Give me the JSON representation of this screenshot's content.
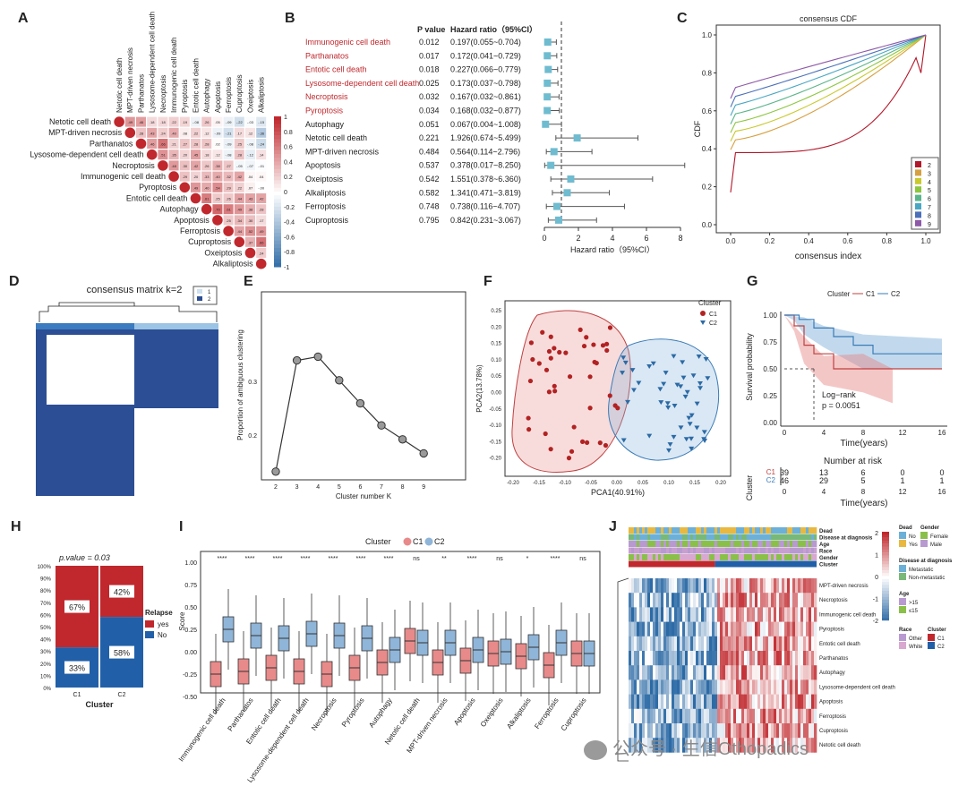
{
  "panel_labels": [
    "A",
    "B",
    "C",
    "D",
    "E",
    "F",
    "G",
    "H",
    "I",
    "J"
  ],
  "watermark": "公众号 · 生信Othopadics",
  "panel_A": {
    "labels": [
      "Netotic cell death",
      "MPT-driven necrosis",
      "Parthanatos",
      "Lysosome-dependent cell death",
      "Necroptosis",
      "Immunogenic cell death",
      "Pyroptosis",
      "Entotic cell death",
      "Autophagy",
      "Apoptosis",
      "Ferroptosis",
      "Cuproptosis",
      "Oxeiptosis",
      "Alkaliptosis"
    ],
    "scale": [
      "1",
      "0.8",
      "0.6",
      "0.4",
      "0.2",
      "0",
      "-0.2",
      "-0.4",
      "-0.6",
      "-0.8",
      "-1"
    ]
  },
  "panel_B": {
    "header_p": "P value",
    "header_hr": "Hazard ratio（95%CI）",
    "xlabel": "Hazard ratio（95%CI）",
    "ticks": [
      "0",
      "2",
      "4",
      "6",
      "8"
    ],
    "rows": [
      {
        "name": "Immunogenic cell death",
        "p": "0.012",
        "hr_text": "0.197(0.055~0.704)",
        "hr": 0.197,
        "lo": 0.055,
        "hi": 0.704,
        "sig": true
      },
      {
        "name": "Parthanatos",
        "p": "0.017",
        "hr_text": "0.172(0.041~0.729)",
        "hr": 0.172,
        "lo": 0.041,
        "hi": 0.729,
        "sig": true
      },
      {
        "name": "Entotic cell death",
        "p": "0.018",
        "hr_text": "0.227(0.066~0.779)",
        "hr": 0.227,
        "lo": 0.066,
        "hi": 0.779,
        "sig": true
      },
      {
        "name": "Lysosome-dependent cell death",
        "p": "0.025",
        "hr_text": "0.173(0.037~0.798)",
        "hr": 0.173,
        "lo": 0.037,
        "hi": 0.798,
        "sig": true
      },
      {
        "name": "Necroptosis",
        "p": "0.032",
        "hr_text": "0.167(0.032~0.861)",
        "hr": 0.167,
        "lo": 0.032,
        "hi": 0.861,
        "sig": true
      },
      {
        "name": "Pyroptosis",
        "p": "0.034",
        "hr_text": "0.168(0.032~0.877)",
        "hr": 0.168,
        "lo": 0.032,
        "hi": 0.877,
        "sig": true
      },
      {
        "name": "Autophagy",
        "p": "0.051",
        "hr_text": "0.067(0.004~1.008)",
        "hr": 0.067,
        "lo": 0.004,
        "hi": 1.008,
        "sig": false
      },
      {
        "name": "Netotic cell death",
        "p": "0.221",
        "hr_text": "1.926(0.674~5.499)",
        "hr": 1.926,
        "lo": 0.674,
        "hi": 5.499,
        "sig": false
      },
      {
        "name": "MPT-driven necrosis",
        "p": "0.484",
        "hr_text": "0.564(0.114~2.796)",
        "hr": 0.564,
        "lo": 0.114,
        "hi": 2.796,
        "sig": false
      },
      {
        "name": "Apoptosis",
        "p": "0.537",
        "hr_text": "0.378(0.017~8.250)",
        "hr": 0.378,
        "lo": 0.017,
        "hi": 8.25,
        "sig": false
      },
      {
        "name": "Oxeiptosis",
        "p": "0.542",
        "hr_text": "1.551(0.378~6.360)",
        "hr": 1.551,
        "lo": 0.378,
        "hi": 6.36,
        "sig": false
      },
      {
        "name": "Alkaliptosis",
        "p": "0.582",
        "hr_text": "1.341(0.471~3.819)",
        "hr": 1.341,
        "lo": 0.471,
        "hi": 3.819,
        "sig": false
      },
      {
        "name": "Ferroptosis",
        "p": "0.748",
        "hr_text": "0.738(0.116~4.707)",
        "hr": 0.738,
        "lo": 0.116,
        "hi": 4.707,
        "sig": false
      },
      {
        "name": "Cuproptosis",
        "p": "0.795",
        "hr_text": "0.842(0.231~3.067)",
        "hr": 0.842,
        "lo": 0.231,
        "hi": 3.067,
        "sig": false
      }
    ]
  },
  "panel_C": {
    "title": "consensus CDF",
    "xlabel": "consensus index",
    "ylabel": "CDF",
    "xticks": [
      "0.0",
      "0.2",
      "0.4",
      "0.6",
      "0.8",
      "1.0"
    ],
    "yticks": [
      "0.0",
      "0.2",
      "0.4",
      "0.6",
      "0.8",
      "1.0"
    ],
    "legend": [
      "2",
      "3",
      "4",
      "5",
      "6",
      "7",
      "8",
      "9"
    ]
  },
  "panel_D": {
    "title": "consensus matrix k=2",
    "legend": [
      "1",
      "2"
    ]
  },
  "panel_E": {
    "xlabel": "Cluster number K",
    "ylabel": "Proportion of ambiguous clustering",
    "xticks": [
      "2",
      "3",
      "4",
      "5",
      "6",
      "7",
      "8",
      "9"
    ],
    "yticks": [
      "0.2",
      "0.3"
    ]
  },
  "panel_F": {
    "xlabel": "PCA1(40.91%)",
    "ylabel": "PCA2(13.78%)",
    "legend_title": "Cluster",
    "legend": [
      "C1",
      "C2"
    ],
    "xticks": [
      "-0.20",
      "-0.15",
      "-0.10",
      "-0.05",
      "0.00",
      "0.05",
      "0.10",
      "0.15",
      "0.20"
    ],
    "yticks": [
      "0.25",
      "0.20",
      "0.15",
      "0.10",
      "0.05",
      "0.00",
      "-0.05",
      "-0.10",
      "-0.15",
      "-0.20"
    ]
  },
  "panel_G": {
    "legend_title": "Cluster",
    "legend": [
      "C1",
      "C2"
    ],
    "ylabel": "Survival probability",
    "xlabel": "Time(years)",
    "yticks": [
      "1.00",
      "0.75",
      "0.50",
      "0.25",
      "0.00"
    ],
    "xticks": [
      "0",
      "4",
      "8",
      "12",
      "16"
    ],
    "logrank": "Log−rank",
    "pval": "p = 0.0051",
    "risk_title": "Number at risk",
    "risk_ylabel": "Cluster",
    "risk_rows": [
      {
        "label": "C1",
        "values": [
          "39",
          "13",
          "6",
          "0",
          "0"
        ]
      },
      {
        "label": "C2",
        "values": [
          "46",
          "29",
          "5",
          "1",
          "1"
        ]
      }
    ]
  },
  "panel_H": {
    "pvalue": "p.value = 0.03",
    "legend_title": "Relapse",
    "legend": [
      "yes",
      "No"
    ],
    "xticks": [
      "C1",
      "C2"
    ],
    "xlabel": "Cluster",
    "yticks": [
      "100%",
      "90%",
      "80%",
      "70%",
      "60%",
      "50%",
      "40%",
      "30%",
      "20%",
      "10%",
      "0%"
    ],
    "bars": [
      {
        "yes": "67%",
        "no": "33%",
        "yes_frac": 0.67
      },
      {
        "yes": "42%",
        "no": "58%",
        "yes_frac": 0.42
      }
    ]
  },
  "panel_I": {
    "legend_title": "Cluster",
    "legend": [
      "C1",
      "C2"
    ],
    "ylabel": "Score",
    "yticks": [
      "1.00",
      "0.75",
      "0.50",
      "0.25",
      "0.00",
      "-0.25",
      "-0.50"
    ],
    "categories": [
      "Immunogenic cell death",
      "Parthanatos",
      "Entotic cell death",
      "Lysosome-dependent cell death",
      "Necroptosis",
      "Pyroptosis",
      "Autophagy",
      "Netotic cell death",
      "MPT-driven necrosis",
      "Apoptosis",
      "Oxeiptosis",
      "Alkaliptosis",
      "Ferroptosis",
      "Cuproptosis"
    ],
    "sig": [
      "****",
      "****",
      "****",
      "****",
      "****",
      "****",
      "****",
      "ns",
      "**",
      "****",
      "ns",
      "*",
      "****",
      "ns"
    ]
  },
  "panel_J": {
    "annot_rows": [
      "Dead",
      "Disease at diagnosis",
      "Age",
      "Race",
      "Gender",
      "Cluster"
    ],
    "rows": [
      "MPT-driven necrosis",
      "Necroptosis",
      "Immunogenic cell death",
      "Pyroptosis",
      "Entotic cell death",
      "Parthanatos",
      "Autophagy",
      "Lysosome-dependent cell death",
      "Apoptosis",
      "Ferroptosis",
      "Cuproptosis",
      "Netotic cell death"
    ],
    "scale": [
      "2",
      "1",
      "0",
      "-1",
      "-2"
    ],
    "legend": {
      "dead_title": "Dead",
      "dead": [
        "No",
        "Yes"
      ],
      "gender_title": "Gender",
      "gender": [
        "Female",
        "Male"
      ],
      "disease_title": "Disease at diagnosis",
      "disease": [
        "Metastatic",
        "Non-metastatic"
      ],
      "age_title": "Age",
      "age": [
        ">15",
        "≤15"
      ],
      "race_title": "Race",
      "race": [
        "Other",
        "White"
      ],
      "cluster_title": "Cluster",
      "cluster": [
        "C1",
        "C2"
      ]
    }
  }
}
